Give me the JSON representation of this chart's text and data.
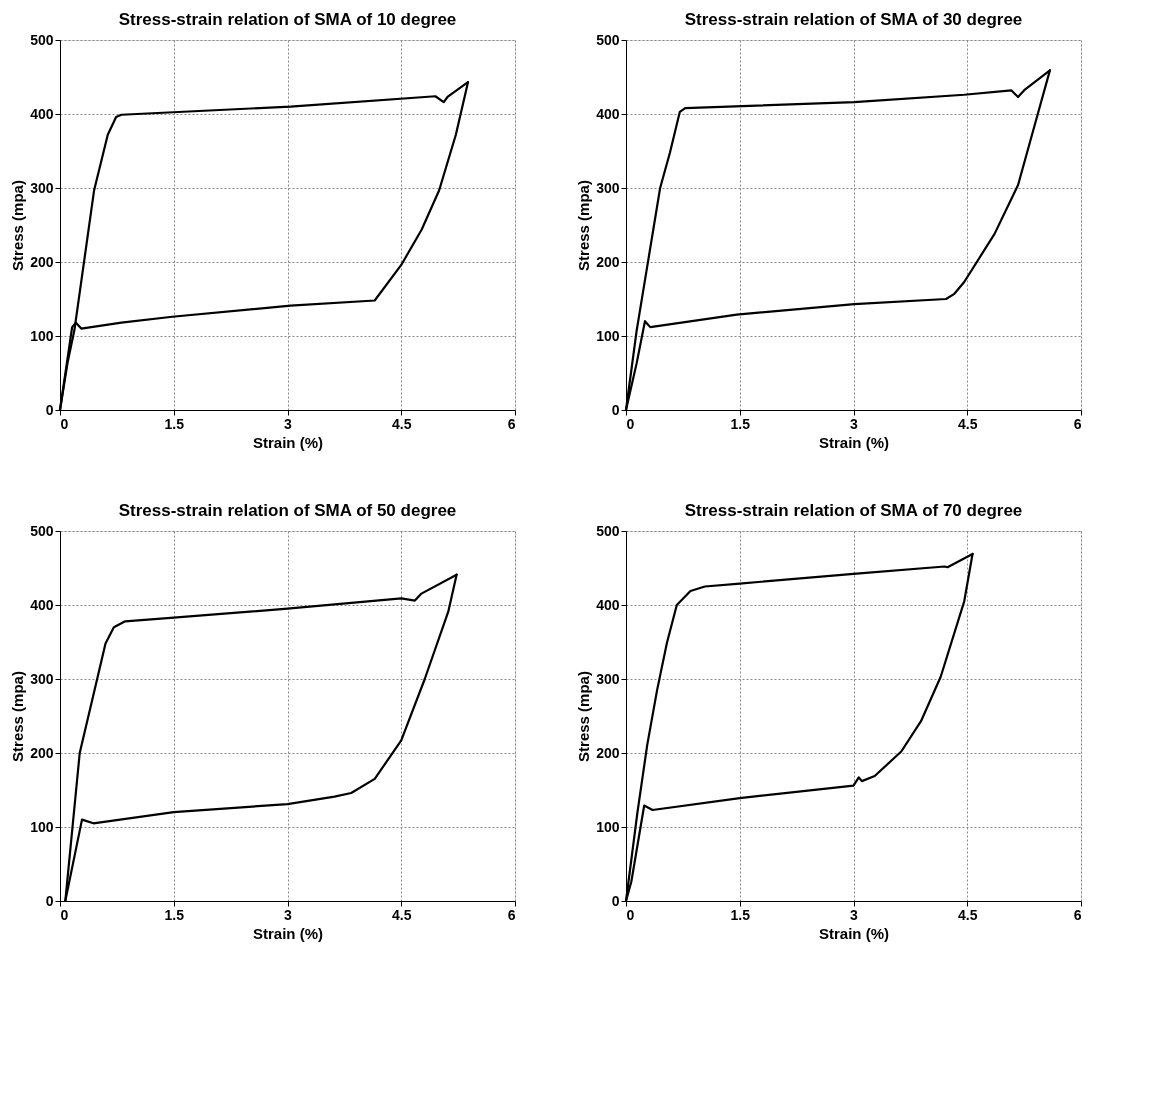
{
  "chart_data": [
    {
      "type": "line",
      "title": "Stress-strain relation of SMA of 10 degree",
      "xlabel": "Strain (%)",
      "ylabel": "Stress (mpa)",
      "xlim": [
        0,
        6
      ],
      "xticks": [
        0,
        1.5,
        3,
        4.5,
        6
      ],
      "ylim": [
        0,
        500
      ],
      "yticks": [
        0,
        100,
        200,
        300,
        400,
        500
      ],
      "grid": true,
      "line_style": "solid",
      "marker": "none",
      "series": [
        {
          "color": "#000000",
          "x": [
            0,
            0.1,
            0.19,
            0.45,
            0.63,
            0.74,
            0.81,
            3.04,
            4.95,
            5.06,
            5.11,
            5.38
          ],
          "values": [
            0,
            64,
            108,
            297,
            372,
            396,
            399,
            410,
            424,
            416,
            423,
            443
          ]
        },
        {
          "color": "#000000",
          "x": [
            0,
            0.16,
            0.21,
            0.28,
            0.81,
            1.48,
            3.04,
            4.15,
            4.5,
            4.77,
            5.0,
            5.22,
            5.38
          ],
          "values": [
            0,
            112,
            118,
            110,
            118,
            126,
            141,
            148,
            196,
            244,
            297,
            372,
            443
          ]
        }
      ]
    },
    {
      "type": "line",
      "title": "Stress-strain relation of SMA of 30 degree",
      "xlabel": "Strain (%)",
      "ylabel": "Stress (mpa)",
      "xlim": [
        0,
        6
      ],
      "xticks": [
        0,
        1.5,
        3,
        4.5,
        6
      ],
      "ylim": [
        0,
        500
      ],
      "yticks": [
        0,
        100,
        200,
        300,
        400,
        500
      ],
      "grid": true,
      "line_style": "solid",
      "marker": "none",
      "series": [
        {
          "color": "#000000",
          "x": [
            0,
            0.14,
            0.28,
            0.45,
            0.58,
            0.71,
            0.78,
            3.01,
            4.46,
            5.08,
            5.17,
            5.26,
            5.59
          ],
          "values": [
            0,
            107,
            194,
            300,
            348,
            403,
            408,
            416,
            426,
            432,
            423,
            433,
            459
          ]
        },
        {
          "color": "#000000",
          "x": [
            0,
            0.14,
            0.25,
            0.32,
            1.46,
            3.01,
            4.22,
            4.33,
            4.46,
            4.86,
            5.17,
            5.43,
            5.59
          ],
          "values": [
            0,
            63,
            120,
            112,
            129,
            143,
            150,
            157,
            173,
            238,
            304,
            400,
            459
          ]
        }
      ]
    },
    {
      "type": "line",
      "title": "Stress-strain relation of SMA of 50 degree",
      "xlabel": "Strain (%)",
      "ylabel": "Stress (mpa)",
      "xlim": [
        0,
        6
      ],
      "xticks": [
        0,
        1.5,
        3,
        4.5,
        6
      ],
      "ylim": [
        0,
        500
      ],
      "yticks": [
        0,
        100,
        200,
        300,
        400,
        500
      ],
      "grid": true,
      "line_style": "solid",
      "marker": "none",
      "series": [
        {
          "color": "#000000",
          "x": [
            0.07,
            0.26,
            0.49,
            0.6,
            0.71,
            0.86,
            1.5,
            3.0,
            4.5,
            4.68,
            4.76,
            5.23
          ],
          "values": [
            0,
            200,
            300,
            348,
            370,
            378,
            383,
            395,
            409,
            406,
            415,
            441
          ]
        },
        {
          "color": "#000000",
          "x": [
            0.07,
            0.29,
            0.44,
            1.5,
            3.0,
            3.62,
            3.84,
            4.15,
            4.5,
            4.81,
            5.12,
            5.23
          ],
          "values": [
            0,
            110,
            105,
            120,
            131,
            141,
            146,
            165,
            217,
            300,
            391,
            441
          ]
        }
      ]
    },
    {
      "type": "line",
      "title": "Stress-strain relation of SMA of 70 degree",
      "xlabel": "Strain (%)",
      "ylabel": "Stress (mpa)",
      "xlim": [
        0,
        6
      ],
      "xticks": [
        0,
        1.5,
        3,
        4.5,
        6
      ],
      "ylim": [
        0,
        500
      ],
      "yticks": [
        0,
        100,
        200,
        300,
        400,
        500
      ],
      "grid": true,
      "line_style": "solid",
      "marker": "none",
      "series": [
        {
          "color": "#000000",
          "x": [
            0,
            0.15,
            0.28,
            0.41,
            0.54,
            0.67,
            0.85,
            1.04,
            1.5,
            3.0,
            4.2,
            4.24,
            4.57
          ],
          "values": [
            0,
            119,
            211,
            285,
            349,
            400,
            419,
            425,
            429,
            442,
            452,
            451,
            469
          ]
        },
        {
          "color": "#000000",
          "x": [
            0,
            0.07,
            0.24,
            0.35,
            1.5,
            3.0,
            3.07,
            3.11,
            3.28,
            3.63,
            3.89,
            4.15,
            4.46,
            4.57
          ],
          "values": [
            0,
            26,
            129,
            123,
            139,
            156,
            167,
            162,
            169,
            202,
            243,
            303,
            405,
            469
          ]
        }
      ]
    }
  ]
}
